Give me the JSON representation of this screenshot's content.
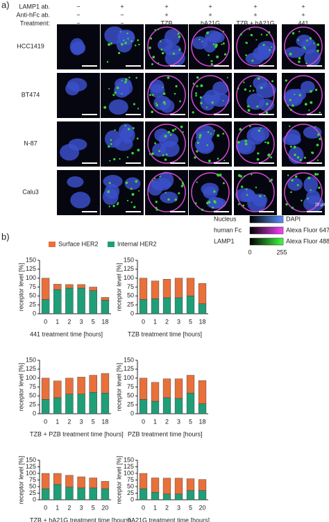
{
  "panel_a": {
    "label": "a)",
    "row_headers": [
      "LAMP1 ab.",
      "Anti-hFc ab.",
      "Treatment:"
    ],
    "columns": [
      [
        "−",
        "−",
        "−"
      ],
      [
        "+",
        "−",
        "−"
      ],
      [
        "+",
        "+",
        "TZB"
      ],
      [
        "+",
        "+",
        "hA21G"
      ],
      [
        "+",
        "+",
        "TZB + hA21G"
      ],
      [
        "+",
        "+",
        "441"
      ]
    ],
    "cell_lines": [
      "HCC1419",
      "BT474",
      "N-87",
      "Calu3"
    ],
    "scale_label": "20 µm",
    "legend": [
      {
        "target": "Nucleus",
        "dye": "DAPI"
      },
      {
        "target": "human Fc",
        "dye": "Alexa Fluor 647"
      },
      {
        "target": "LAMP1",
        "dye": "Alexa Fluor 488"
      }
    ],
    "range": [
      "0",
      "255"
    ]
  },
  "panel_b": {
    "label": "b)"
  },
  "chart_data": [
    {
      "type": "bar",
      "stacked": true,
      "xlabel": "441 treatment time [hours]",
      "ylabel": "receptor level [%]",
      "categories": [
        "0",
        "1",
        "2",
        "3",
        "5",
        "18"
      ],
      "series": [
        {
          "name": "Internal HER2",
          "color": "#1f9e78",
          "values": [
            40,
            68,
            72,
            72,
            65,
            38
          ]
        },
        {
          "name": "Surface HER2",
          "color": "#e8703a",
          "values": [
            60,
            15,
            10,
            10,
            10,
            8
          ]
        }
      ],
      "ylim": [
        0,
        150
      ],
      "yticks": [
        0,
        25,
        50,
        75,
        100,
        125,
        150
      ]
    },
    {
      "type": "bar",
      "stacked": true,
      "xlabel": "TZB treatment time [hours]",
      "ylabel": "receptor level [%]",
      "categories": [
        "0",
        "1",
        "2",
        "3",
        "5",
        "18"
      ],
      "series": [
        {
          "name": "Internal HER2",
          "color": "#1f9e78",
          "values": [
            40,
            42,
            45,
            45,
            50,
            28
          ]
        },
        {
          "name": "Surface HER2",
          "color": "#e8703a",
          "values": [
            60,
            50,
            52,
            55,
            50,
            57
          ]
        }
      ],
      "ylim": [
        0,
        150
      ],
      "yticks": [
        0,
        25,
        50,
        75,
        100,
        125,
        150
      ]
    },
    {
      "type": "bar",
      "stacked": true,
      "xlabel": "TZB + PZB treatment time [hours]",
      "ylabel": "receptor level [%]",
      "categories": [
        "0",
        "1",
        "2",
        "3",
        "5",
        "18"
      ],
      "series": [
        {
          "name": "Internal HER2",
          "color": "#1f9e78",
          "values": [
            40,
            45,
            55,
            55,
            60,
            58
          ]
        },
        {
          "name": "Surface HER2",
          "color": "#e8703a",
          "values": [
            60,
            47,
            45,
            48,
            48,
            55
          ]
        }
      ],
      "ylim": [
        0,
        150
      ],
      "yticks": [
        0,
        25,
        50,
        75,
        100,
        125,
        150
      ]
    },
    {
      "type": "bar",
      "stacked": true,
      "xlabel": "PZB treatment time [hours]",
      "ylabel": "receptor level [%]",
      "categories": [
        "0",
        "1",
        "2",
        "3",
        "5",
        "18"
      ],
      "series": [
        {
          "name": "Internal HER2",
          "color": "#1f9e78",
          "values": [
            40,
            35,
            45,
            43,
            58,
            28
          ]
        },
        {
          "name": "Surface HER2",
          "color": "#e8703a",
          "values": [
            60,
            53,
            53,
            55,
            50,
            65
          ]
        }
      ],
      "ylim": [
        0,
        150
      ],
      "yticks": [
        0,
        25,
        50,
        75,
        100,
        125,
        150
      ]
    },
    {
      "type": "bar",
      "stacked": true,
      "xlabel": "TZB + hA21G treatment time [hours]",
      "ylabel": "receptor level [%]",
      "categories": [
        "0",
        "1",
        "2",
        "3",
        "5",
        "20"
      ],
      "series": [
        {
          "name": "Internal HER2",
          "color": "#1f9e78",
          "values": [
            42,
            58,
            48,
            45,
            45,
            42
          ]
        },
        {
          "name": "Surface HER2",
          "color": "#e8703a",
          "values": [
            58,
            42,
            45,
            42,
            38,
            28
          ]
        }
      ],
      "ylim": [
        0,
        150
      ],
      "yticks": [
        0,
        25,
        50,
        75,
        100,
        125,
        150
      ]
    },
    {
      "type": "bar",
      "stacked": true,
      "xlabel": "hA21G treatment time [hours]",
      "ylabel": "receptor level [%]",
      "categories": [
        "0",
        "1",
        "2",
        "3",
        "5",
        "20"
      ],
      "series": [
        {
          "name": "Internal HER2",
          "color": "#1f9e78",
          "values": [
            42,
            28,
            22,
            22,
            35,
            35
          ]
        },
        {
          "name": "Surface HER2",
          "color": "#e8703a",
          "values": [
            58,
            55,
            60,
            60,
            45,
            42
          ]
        }
      ],
      "ylim": [
        0,
        150
      ],
      "yticks": [
        0,
        25,
        50,
        75,
        100,
        125,
        150
      ]
    }
  ]
}
